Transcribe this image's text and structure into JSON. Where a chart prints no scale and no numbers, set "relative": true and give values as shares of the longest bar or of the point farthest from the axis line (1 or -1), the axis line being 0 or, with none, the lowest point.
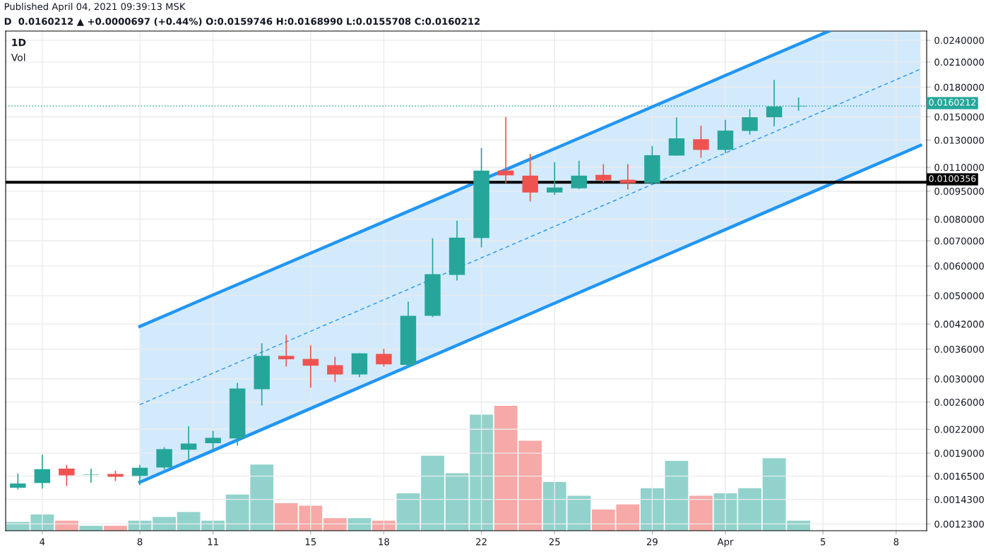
{
  "chart_data": [
    {
      "type": "candlestick",
      "title": "1D",
      "annotations": [
        "Published April 04, 2021 09:39:13 MSK",
        "D  0.0160212 ▲ +0.0000697 (+0.44%) O:0.0159746 H:0.0168990 L:0.0155708 C:0.0160212"
      ],
      "x": [
        "2021-03-03",
        "2021-03-04",
        "2021-03-05",
        "2021-03-06",
        "2021-03-07",
        "2021-03-08",
        "2021-03-09",
        "2021-03-10",
        "2021-03-11",
        "2021-03-12",
        "2021-03-13",
        "2021-03-14",
        "2021-03-15",
        "2021-03-16",
        "2021-03-17",
        "2021-03-18",
        "2021-03-19",
        "2021-03-20",
        "2021-03-21",
        "2021-03-22",
        "2021-03-23",
        "2021-03-24",
        "2021-03-25",
        "2021-03-26",
        "2021-03-27",
        "2021-03-28",
        "2021-03-29",
        "2021-03-30",
        "2021-03-31",
        "2021-04-01",
        "2021-04-02",
        "2021-04-03",
        "2021-04-04"
      ],
      "ohlc": [
        [
          0.001536,
          0.001677,
          0.001521,
          0.001577
        ],
        [
          0.001582,
          0.001883,
          0.001529,
          0.001722
        ],
        [
          0.001728,
          0.001768,
          0.001552,
          0.001658
        ],
        [
          0.001664,
          0.001728,
          0.001584,
          0.001668
        ],
        [
          0.001672,
          0.001707,
          0.001601,
          0.001644
        ],
        [
          0.001652,
          0.001768,
          0.001563,
          0.001737
        ],
        [
          0.00174,
          0.001971,
          0.001719,
          0.001948
        ],
        [
          0.001941,
          0.002241,
          0.001823,
          0.002016
        ],
        [
          0.00202,
          0.00218,
          0.001927,
          0.002088
        ],
        [
          0.00208,
          0.002925,
          0.001992,
          0.002825
        ],
        [
          0.002815,
          0.003734,
          0.002546,
          0.003454
        ],
        [
          0.003454,
          0.003933,
          0.003234,
          0.003383
        ],
        [
          0.003389,
          0.003683,
          0.00284,
          0.003251
        ],
        [
          0.003262,
          0.003436,
          0.002941,
          0.003081
        ],
        [
          0.003081,
          0.00351,
          0.003028,
          0.003508
        ],
        [
          0.003496,
          0.003607,
          0.003234,
          0.003279
        ],
        [
          0.003268,
          0.004817,
          0.003234,
          0.004417
        ],
        [
          0.004417,
          0.00711,
          0.004383,
          0.005702
        ],
        [
          0.005682,
          0.007924,
          0.005484,
          0.007141
        ],
        [
          0.007123,
          0.01239,
          0.006724,
          0.01078
        ],
        [
          0.01078,
          0.01498,
          0.009976,
          0.01047
        ],
        [
          0.01045,
          0.01195,
          0.00891,
          0.009421
        ],
        [
          0.009421,
          0.01135,
          0.009276,
          0.009716
        ],
        [
          0.009669,
          0.01145,
          0.009628,
          0.01045
        ],
        [
          0.0105,
          0.01122,
          0.01002,
          0.01015
        ],
        [
          0.01019,
          0.01122,
          0.009598,
          0.009976
        ],
        [
          0.009976,
          0.01254,
          0.009898,
          0.01185
        ],
        [
          0.01182,
          0.01493,
          0.01182,
          0.01314
        ],
        [
          0.01307,
          0.01421,
          0.01167,
          0.01224
        ],
        [
          0.01224,
          0.01472,
          0.012,
          0.01378
        ],
        [
          0.01375,
          0.01571,
          0.01345,
          0.01496
        ],
        [
          0.01496,
          0.01882,
          0.01414,
          0.01598
        ],
        [
          0.0159746,
          0.016899,
          0.0155708,
          0.0160212
        ]
      ],
      "colors": [
        "#26a69a",
        "#26a69a",
        "#ef5350",
        "#26a69a",
        "#ef5350",
        "#26a69a",
        "#26a69a",
        "#26a69a",
        "#26a69a",
        "#26a69a",
        "#26a69a",
        "#ef5350",
        "#ef5350",
        "#ef5350",
        "#26a69a",
        "#ef5350",
        "#26a69a",
        "#26a69a",
        "#26a69a",
        "#26a69a",
        "#ef5350",
        "#ef5350",
        "#26a69a",
        "#26a69a",
        "#ef5350",
        "#ef5350",
        "#26a69a",
        "#26a69a",
        "#ef5350",
        "#26a69a",
        "#26a69a",
        "#26a69a",
        "#26a69a"
      ],
      "series": [
        {
          "type": "line",
          "color": "#2196f3",
          "line_style": "dashed",
          "x": [
            "2021-03-08",
            "2021-04-05T06:00",
            "2021-04-09"
          ],
          "values": [
            0.00256,
            0.01579,
            0.0201
          ],
          "lower": [
            0.00159,
            0.00988,
            0.01259
          ],
          "upper": [
            0.00414,
            0.0254,
            0.0254
          ]
        },
        {
          "type": "line",
          "color": "#2196f3",
          "line_style": "solid",
          "x": [
            "2021-03-08",
            "2021-04-05T06:00"
          ],
          "values": [
            0.00414,
            0.0254
          ]
        },
        {
          "type": "line",
          "color": "#2196f3",
          "line_style": "solid",
          "x": [
            "2021-03-08",
            "2021-04-09"
          ],
          "values": [
            0.00159,
            0.01259
          ]
        }
      ],
      "ref_lines": [
        {
          "axis": "y",
          "value": 0.0100356,
          "label": "0.0100356",
          "color": "#000000",
          "line_style": "solid"
        },
        {
          "axis": "y",
          "value": 0.0160212,
          "label": "0.0160212",
          "color": "#26a69a",
          "line_style": "dotted"
        }
      ],
      "log": true,
      "ylim": [
        0.00118,
        0.0254
      ],
      "yticks": [
        {
          "value": 0.00123,
          "label": "0.0012300"
        },
        {
          "value": 0.00143,
          "label": "0.0014300"
        },
        {
          "value": 0.00165,
          "label": "0.0016500"
        },
        {
          "value": 0.0019,
          "label": "0.0019000"
        },
        {
          "value": 0.0022,
          "label": "0.0022000"
        },
        {
          "value": 0.0026,
          "label": "0.0026000"
        },
        {
          "value": 0.003,
          "label": "0.0030000"
        },
        {
          "value": 0.0036,
          "label": "0.0036000"
        },
        {
          "value": 0.0042,
          "label": "0.0042000"
        },
        {
          "value": 0.005,
          "label": "0.0050000"
        },
        {
          "value": 0.006,
          "label": "0.0060000"
        },
        {
          "value": 0.007,
          "label": "0.0070000"
        },
        {
          "value": 0.008,
          "label": "0.0080000"
        },
        {
          "value": 0.0095,
          "label": "0.0095000"
        },
        {
          "value": 0.011,
          "label": "0.0110000"
        },
        {
          "value": 0.013,
          "label": "0.0130000"
        },
        {
          "value": 0.015,
          "label": "0.0150000"
        },
        {
          "value": 0.018,
          "label": "0.0180000"
        },
        {
          "value": 0.021,
          "label": "0.0210000"
        },
        {
          "value": 0.024,
          "label": "0.0240000"
        }
      ],
      "xlim": [
        "2021-03-02T12:00",
        "2021-04-09T06:00"
      ],
      "xticks": [
        {
          "value": "2021-03-04",
          "label": "4"
        },
        {
          "value": "2021-03-08",
          "label": "8"
        },
        {
          "value": "2021-03-11",
          "label": "11"
        },
        {
          "value": "2021-03-15",
          "label": "15"
        },
        {
          "value": "2021-03-18",
          "label": "18"
        },
        {
          "value": "2021-03-22",
          "label": "22"
        },
        {
          "value": "2021-03-25",
          "label": "25"
        },
        {
          "value": "2021-03-29",
          "label": "29"
        },
        {
          "value": "2021-04-01",
          "label": "Apr"
        },
        {
          "value": "2021-04-05",
          "label": "5"
        },
        {
          "value": "2021-04-08",
          "label": "8"
        }
      ],
      "grid": true
    },
    {
      "type": "bar",
      "title": "Vol",
      "relative": true,
      "x": [
        "2021-03-03",
        "2021-03-04",
        "2021-03-05",
        "2021-03-06",
        "2021-03-07",
        "2021-03-08",
        "2021-03-09",
        "2021-03-10",
        "2021-03-11",
        "2021-03-12",
        "2021-03-13",
        "2021-03-14",
        "2021-03-15",
        "2021-03-16",
        "2021-03-17",
        "2021-03-18",
        "2021-03-19",
        "2021-03-20",
        "2021-03-21",
        "2021-03-22",
        "2021-03-23",
        "2021-03-24",
        "2021-03-25",
        "2021-03-26",
        "2021-03-27",
        "2021-03-28",
        "2021-03-29",
        "2021-03-30",
        "2021-03-31",
        "2021-04-01",
        "2021-04-02",
        "2021-04-03",
        "2021-04-04"
      ],
      "values": [
        0.07,
        0.13,
        0.08,
        0.04,
        0.04,
        0.08,
        0.11,
        0.15,
        0.08,
        0.29,
        0.53,
        0.22,
        0.2,
        0.1,
        0.1,
        0.08,
        0.3,
        0.6,
        0.46,
        0.93,
        1,
        0.72,
        0.39,
        0.28,
        0.17,
        0.21,
        0.34,
        0.56,
        0.28,
        0.3,
        0.34,
        0.58,
        0.08
      ],
      "colors": [
        "#92d2cc",
        "#92d2cc",
        "#f7a9a7",
        "#92d2cc",
        "#f7a9a7",
        "#92d2cc",
        "#92d2cc",
        "#92d2cc",
        "#92d2cc",
        "#92d2cc",
        "#92d2cc",
        "#f7a9a7",
        "#f7a9a7",
        "#f7a9a7",
        "#92d2cc",
        "#f7a9a7",
        "#92d2cc",
        "#92d2cc",
        "#92d2cc",
        "#92d2cc",
        "#f7a9a7",
        "#f7a9a7",
        "#92d2cc",
        "#92d2cc",
        "#f7a9a7",
        "#f7a9a7",
        "#92d2cc",
        "#92d2cc",
        "#f7a9a7",
        "#92d2cc",
        "#92d2cc",
        "#92d2cc",
        "#92d2cc"
      ],
      "xlim": [
        "2021-03-02T12:00",
        "2021-04-09T06:00"
      ]
    }
  ]
}
